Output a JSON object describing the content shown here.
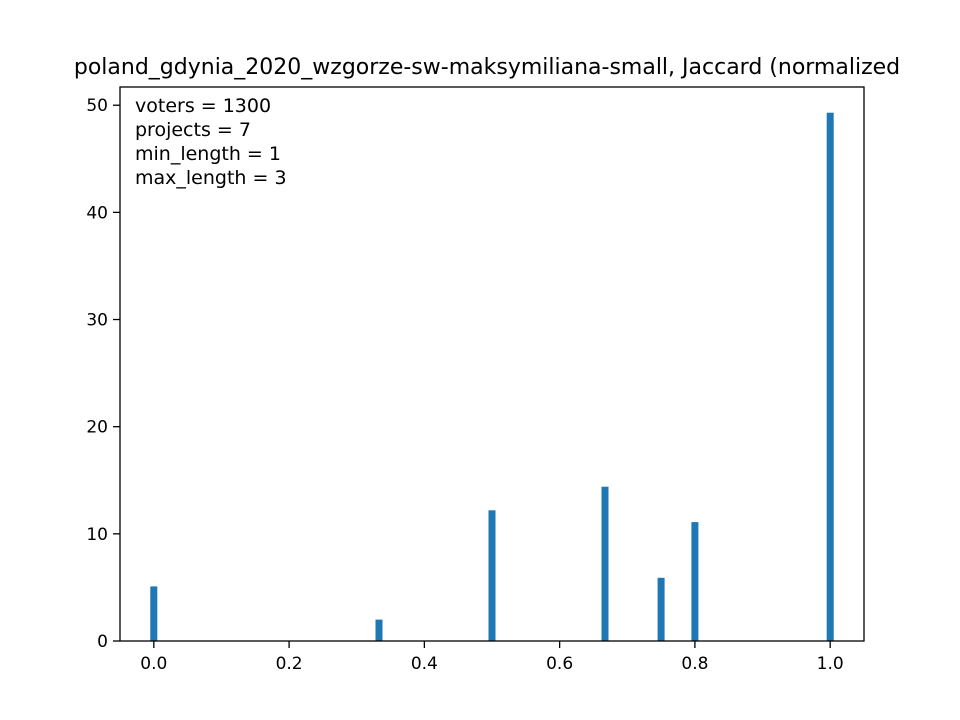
{
  "chart_data": {
    "type": "bar",
    "title": "poland_gdynia_2020_wzgorze-sw-maksymiliana-small, Jaccard (normalized",
    "xlabel": "",
    "ylabel": "",
    "xlim": [
      -0.05,
      1.05
    ],
    "ylim": [
      0,
      51.7
    ],
    "x_ticks": [
      "0.0",
      "0.2",
      "0.4",
      "0.6",
      "0.8",
      "1.0"
    ],
    "y_ticks": [
      "0",
      "10",
      "20",
      "30",
      "40",
      "50"
    ],
    "bar_color": "#1f77b4",
    "grid": false,
    "bars": [
      {
        "x": 0.0,
        "value": 5.1
      },
      {
        "x": 0.333,
        "value": 2.0
      },
      {
        "x": 0.5,
        "value": 12.2
      },
      {
        "x": 0.667,
        "value": 14.4
      },
      {
        "x": 0.75,
        "value": 5.9
      },
      {
        "x": 0.8,
        "value": 11.1
      },
      {
        "x": 1.0,
        "value": 49.3
      }
    ],
    "annotations": [
      "voters = 1300",
      "projects = 7",
      "min_length = 1",
      "max_length = 3"
    ]
  }
}
